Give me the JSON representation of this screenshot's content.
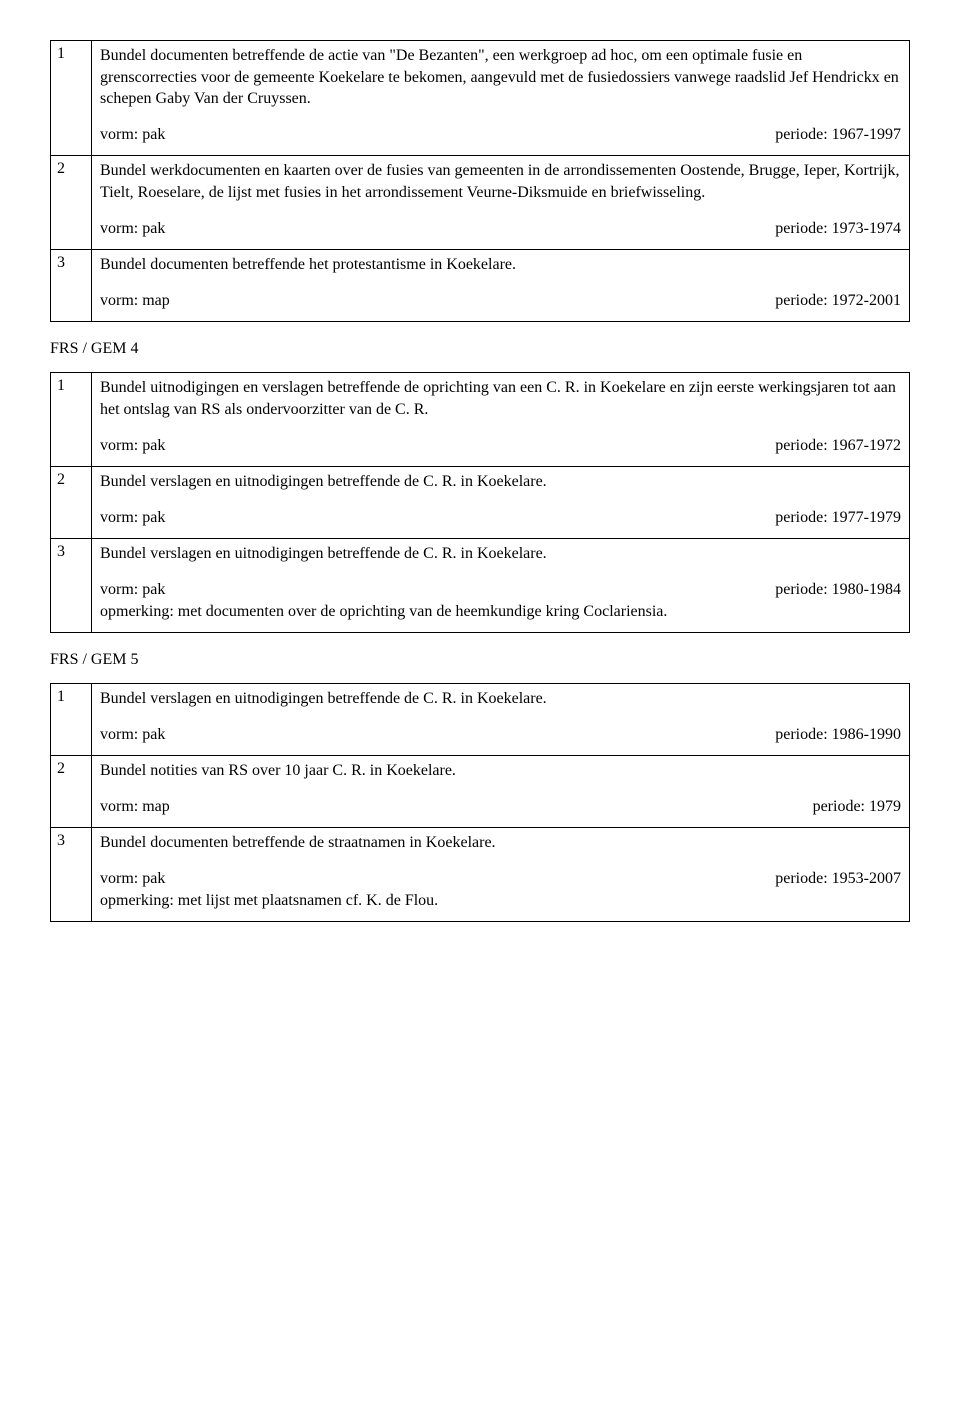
{
  "tables": [
    {
      "section_label": null,
      "rows": [
        {
          "num": "1",
          "desc": "Bundel documenten betreffende de actie van \"De Bezanten\", een werkgroep ad hoc, om een optimale fusie en grenscorrecties voor de gemeente Koekelare te bekomen, aangevuld met de fusiedossiers vanwege raadslid Jef Hendrickx en schepen Gaby Van der Cruyssen.",
          "form": "vorm: pak",
          "period": "periode: 1967-1997",
          "note": null
        },
        {
          "num": "2",
          "desc": "Bundel werkdocumenten en kaarten over de fusies van gemeenten in de arrondissementen Oostende, Brugge, Ieper, Kortrijk, Tielt, Roeselare, de lijst met fusies in het arrondissement Veurne-Diksmuide en briefwisseling.",
          "form": "vorm: pak",
          "period": "periode: 1973-1974",
          "note": null
        },
        {
          "num": "3",
          "desc": "Bundel documenten betreffende het protestantisme in Koekelare.",
          "form": "vorm: map",
          "period": "periode: 1972-2001",
          "note": null
        }
      ]
    },
    {
      "section_label": "FRS / GEM 4",
      "rows": [
        {
          "num": "1",
          "desc": "Bundel uitnodigingen en verslagen betreffende de oprichting van een C. R. in Koekelare en zijn eerste werkingsjaren tot aan het ontslag van RS als ondervoorzitter van de C. R.",
          "form": "vorm: pak",
          "period": "periode: 1967-1972",
          "note": null
        },
        {
          "num": "2",
          "desc": "Bundel verslagen en uitnodigingen betreffende de C. R. in Koekelare.",
          "form": "vorm: pak",
          "period": "periode: 1977-1979",
          "note": null
        },
        {
          "num": "3",
          "desc": "Bundel verslagen en uitnodigingen betreffende de C. R. in Koekelare.",
          "form": "vorm: pak",
          "period": "periode: 1980-1984",
          "note": "opmerking: met documenten over de oprichting van de heemkundige kring Coclariensia."
        }
      ]
    },
    {
      "section_label": "FRS / GEM 5",
      "rows": [
        {
          "num": "1",
          "desc": "Bundel verslagen en uitnodigingen betreffende de C. R. in Koekelare.",
          "form": "vorm: pak",
          "period": "periode: 1986-1990",
          "note": null
        },
        {
          "num": "2",
          "desc": "Bundel notities van RS over 10 jaar C. R. in Koekelare.",
          "form": "vorm: map",
          "period": "periode: 1979",
          "note": null
        },
        {
          "num": "3",
          "desc": "Bundel documenten betreffende de straatnamen in Koekelare.",
          "form": "vorm: pak",
          "period": "periode: 1953-2007",
          "note": "opmerking: met lijst met plaatsnamen cf. K. de Flou."
        }
      ]
    }
  ]
}
